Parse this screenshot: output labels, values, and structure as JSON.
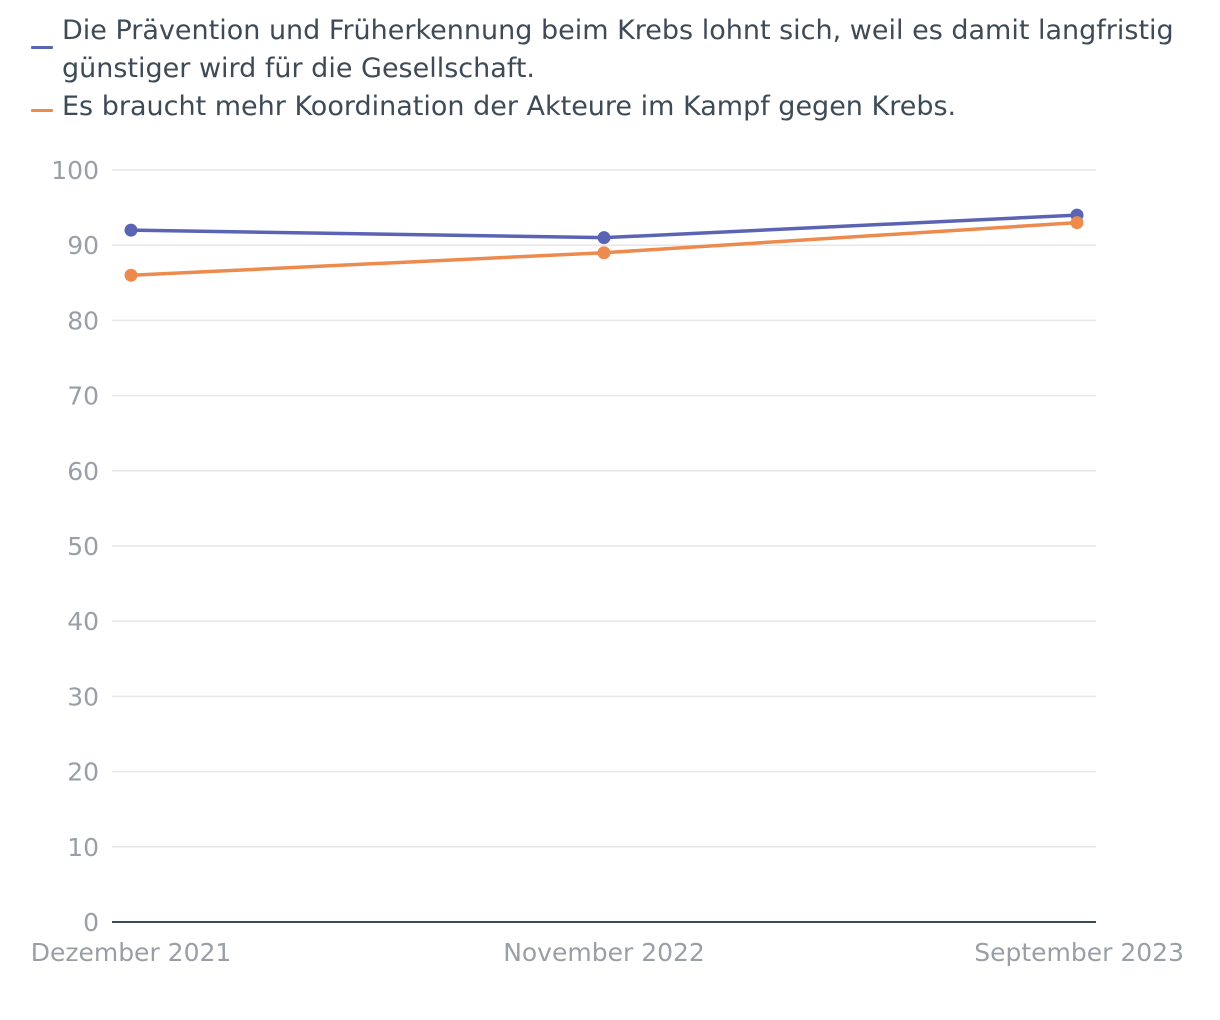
{
  "chart_data": {
    "type": "line",
    "categories": [
      "Dezember 2021",
      "November 2022",
      "September 2023"
    ],
    "ylim": [
      0,
      100
    ],
    "yticks": [
      0,
      10,
      20,
      30,
      40,
      50,
      60,
      70,
      80,
      90,
      100
    ],
    "grid": true,
    "legend_position": "top-left",
    "series": [
      {
        "name": "Die Prävention und Früherkennung beim Krebs lohnt sich, weil es damit langfristig günstiger wird für die Gesellschaft.",
        "color": "#5b63b5",
        "values": [
          92,
          91,
          94
        ]
      },
      {
        "name": "Es braucht mehr Koordination der Akteure im Kampf gegen Krebs.",
        "color": "#ed8a4e",
        "values": [
          86,
          89,
          93
        ]
      }
    ],
    "colors": {
      "grid": "#e6e6e6",
      "axis": "#3e4b57",
      "tick_text": "#9a9fa6",
      "legend_text": "#3e4b57"
    }
  }
}
